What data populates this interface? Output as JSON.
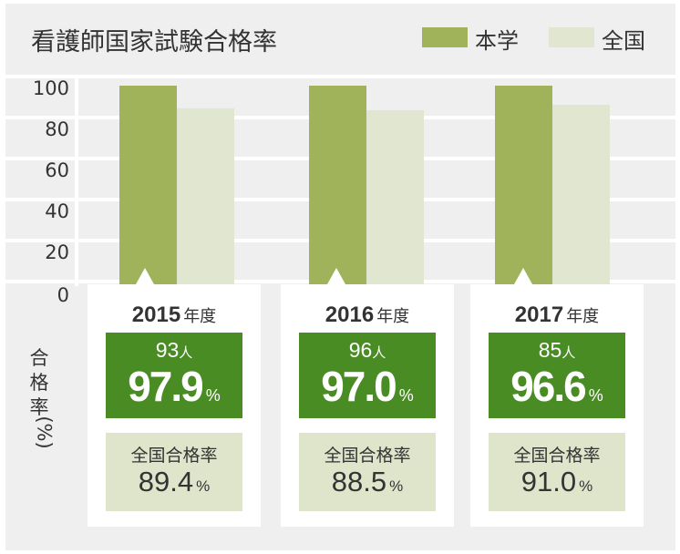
{
  "title": "看護師国家試験合格率",
  "legend": {
    "school_label": "本学",
    "national_label": "全国",
    "school_color": "#a0b35b",
    "national_color": "#e0e6cf"
  },
  "chart_data": {
    "type": "bar",
    "title": "看護師国家試験合格率",
    "categories": [
      "2015",
      "2016",
      "2017"
    ],
    "series": [
      {
        "name": "本学",
        "values": [
          97.9,
          97.0,
          96.6
        ]
      },
      {
        "name": "全国",
        "values": [
          89.4,
          88.5,
          91.0
        ]
      }
    ],
    "ylabel": "合格率（%）",
    "ylim": [
      0,
      100
    ],
    "yticks": [
      "0",
      "20",
      "40",
      "60",
      "80",
      "100"
    ],
    "grid": true,
    "legend_position": "top-right"
  },
  "ylabel_chars": [
    "合",
    "格",
    "率"
  ],
  "ylabel_paren": "(%)",
  "year_suffix": "年度",
  "count_unit": "人",
  "pct_unit": "%",
  "national_label": "全国合格率",
  "cards": [
    {
      "year": "2015",
      "count": "93",
      "rate": "97.9",
      "national_rate": "89.4"
    },
    {
      "year": "2016",
      "count": "96",
      "rate": "97.0",
      "national_rate": "88.5"
    },
    {
      "year": "2017",
      "count": "85",
      "rate": "96.6",
      "national_rate": "91.0"
    }
  ]
}
